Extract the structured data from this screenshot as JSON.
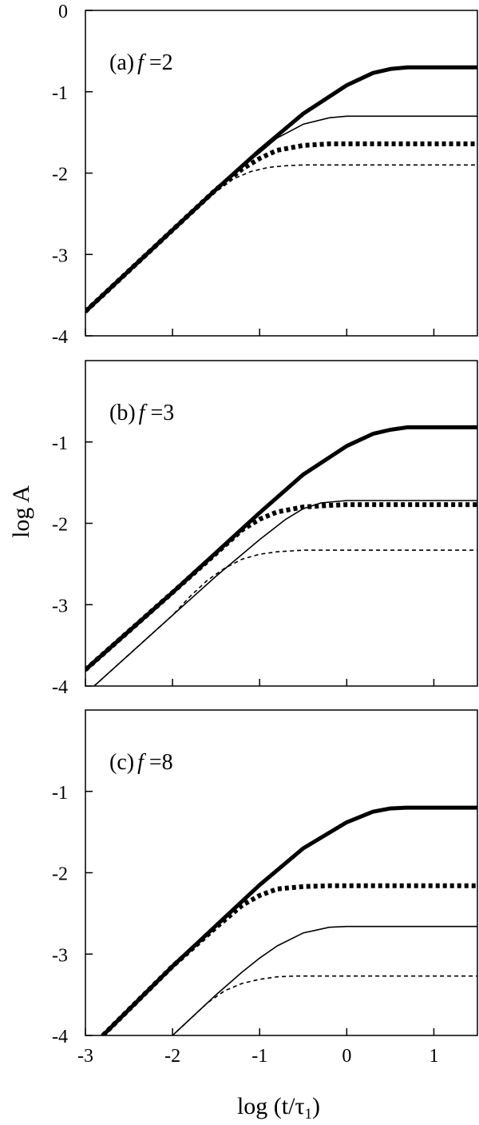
{
  "figure": {
    "ylabel": "log A",
    "xlabel_main": "log (t/τ",
    "xlabel_sub": "1",
    "xlabel_close": ")"
  },
  "chart_data": [
    {
      "type": "line",
      "panel_label": "(a)",
      "param_symbol": "f",
      "param_text": " =2",
      "xlim": [
        -3,
        1.5
      ],
      "ylim": [
        -4,
        0
      ],
      "xticks": [
        "-3",
        "-2",
        "-1",
        "0",
        "1"
      ],
      "yticks": [
        "0",
        "-1",
        "-2",
        "-3",
        "-4"
      ],
      "show_xtick_labels": false,
      "series": [
        {
          "style": "thick-solid",
          "x": [
            -3,
            -2,
            -1.5,
            -1,
            -0.5,
            0,
            0.3,
            0.5,
            0.7,
            1,
            1.5
          ],
          "y": [
            -3.7,
            -2.7,
            -2.2,
            -1.72,
            -1.27,
            -0.92,
            -0.77,
            -0.72,
            -0.7,
            -0.7,
            -0.7
          ]
        },
        {
          "style": "thin-solid",
          "x": [
            -3,
            -2,
            -1.5,
            -1.2,
            -1,
            -0.8,
            -0.5,
            -0.2,
            0,
            0.5,
            1.5
          ],
          "y": [
            -3.7,
            -2.7,
            -2.2,
            -1.92,
            -1.75,
            -1.57,
            -1.4,
            -1.32,
            -1.3,
            -1.3,
            -1.3
          ]
        },
        {
          "style": "thick-dotted",
          "x": [
            -3,
            -2,
            -1.5,
            -1.2,
            -1,
            -0.8,
            -0.5,
            -0.2,
            0,
            0.5,
            1.5
          ],
          "y": [
            -3.7,
            -2.7,
            -2.2,
            -1.95,
            -1.82,
            -1.72,
            -1.66,
            -1.64,
            -1.64,
            -1.64,
            -1.64
          ]
        },
        {
          "style": "thin-dashed",
          "x": [
            -3,
            -2,
            -1.5,
            -1.3,
            -1.1,
            -0.9,
            -0.7,
            -0.5,
            0,
            1.5
          ],
          "y": [
            -3.7,
            -2.7,
            -2.23,
            -2.07,
            -1.98,
            -1.93,
            -1.91,
            -1.9,
            -1.9,
            -1.9
          ]
        }
      ]
    },
    {
      "type": "line",
      "panel_label": "(b)",
      "param_symbol": "f",
      "param_text": " =3",
      "xlim": [
        -3,
        1.5
      ],
      "ylim": [
        -4,
        0
      ],
      "xticks": [
        "-3",
        "-2",
        "-1",
        "0",
        "1"
      ],
      "yticks": [
        "-1",
        "-2",
        "-3",
        "-4"
      ],
      "show_xtick_labels": false,
      "series": [
        {
          "style": "thick-solid",
          "x": [
            -3,
            -2,
            -1.5,
            -1,
            -0.5,
            0,
            0.3,
            0.5,
            0.7,
            1,
            1.5
          ],
          "y": [
            -3.8,
            -2.85,
            -2.36,
            -1.87,
            -1.4,
            -1.05,
            -0.9,
            -0.85,
            -0.82,
            -0.82,
            -0.82
          ]
        },
        {
          "style": "thick-dotted",
          "x": [
            -3,
            -2,
            -1.5,
            -1.2,
            -1,
            -0.8,
            -0.5,
            -0.2,
            0,
            0.5,
            1.5
          ],
          "y": [
            -3.8,
            -2.85,
            -2.37,
            -2.08,
            -1.95,
            -1.86,
            -1.8,
            -1.78,
            -1.77,
            -1.77,
            -1.77
          ]
        },
        {
          "style": "thin-solid",
          "x": [
            -2.9,
            -2,
            -1.5,
            -1,
            -0.7,
            -0.5,
            -0.3,
            0,
            0.5,
            1.5
          ],
          "y": [
            -4.0,
            -3.13,
            -2.65,
            -2.2,
            -1.95,
            -1.82,
            -1.75,
            -1.72,
            -1.72,
            -1.72
          ]
        },
        {
          "style": "thin-dashed",
          "x": [
            -2.9,
            -2,
            -1.8,
            -1.6,
            -1.4,
            -1.2,
            -1,
            -0.8,
            -0.5,
            0,
            1.5
          ],
          "y": [
            -4.0,
            -3.13,
            -2.9,
            -2.7,
            -2.55,
            -2.44,
            -2.38,
            -2.35,
            -2.33,
            -2.33,
            -2.33
          ]
        }
      ]
    },
    {
      "type": "line",
      "panel_label": "(c)",
      "param_symbol": "f",
      "param_text": " =8",
      "xlim": [
        -3,
        1.5
      ],
      "ylim": [
        -4,
        0
      ],
      "xticks": [
        "-3",
        "-2",
        "-1",
        "0",
        "1"
      ],
      "yticks": [
        "-1",
        "-2",
        "-3",
        "-4"
      ],
      "show_xtick_labels": true,
      "series": [
        {
          "style": "thick-solid",
          "x": [
            -2.8,
            -2,
            -1.5,
            -1,
            -0.5,
            0,
            0.3,
            0.5,
            0.7,
            1,
            1.5
          ],
          "y": [
            -4.0,
            -3.15,
            -2.65,
            -2.15,
            -1.7,
            -1.38,
            -1.25,
            -1.21,
            -1.2,
            -1.2,
            -1.2
          ]
        },
        {
          "style": "thick-dotted",
          "x": [
            -2.8,
            -2,
            -1.5,
            -1.2,
            -1,
            -0.8,
            -0.5,
            -0.2,
            0,
            0.5,
            1.5
          ],
          "y": [
            -4.0,
            -3.15,
            -2.67,
            -2.4,
            -2.28,
            -2.2,
            -2.17,
            -2.16,
            -2.16,
            -2.16,
            -2.16
          ]
        },
        {
          "style": "thin-solid",
          "x": [
            -2.0,
            -1.5,
            -1.2,
            -1,
            -0.8,
            -0.5,
            -0.2,
            0,
            0.5,
            1.5
          ],
          "y": [
            -4.0,
            -3.5,
            -3.22,
            -3.05,
            -2.9,
            -2.74,
            -2.67,
            -2.66,
            -2.66,
            -2.66
          ]
        },
        {
          "style": "thin-dashed",
          "x": [
            -1.95,
            -1.6,
            -1.4,
            -1.2,
            -1,
            -0.8,
            -0.6,
            -0.3,
            0,
            1.5
          ],
          "y": [
            -3.95,
            -3.6,
            -3.45,
            -3.36,
            -3.31,
            -3.28,
            -3.27,
            -3.27,
            -3.27,
            -3.27
          ]
        }
      ]
    }
  ]
}
